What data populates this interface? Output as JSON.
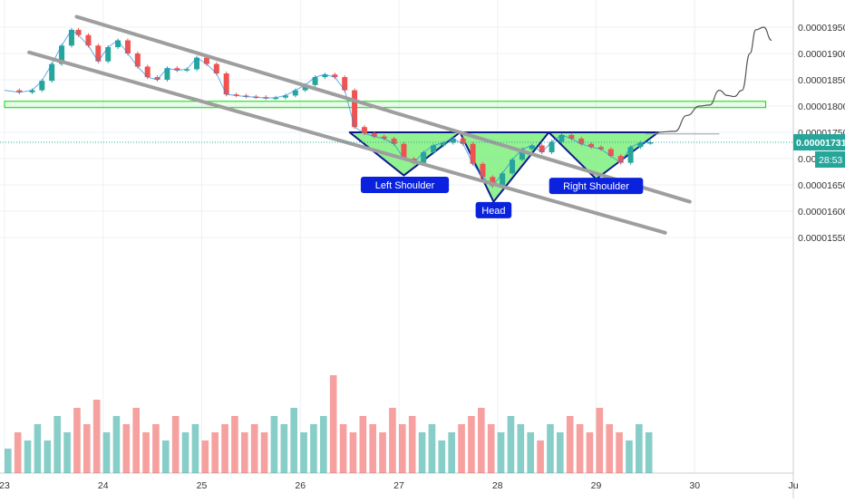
{
  "chart_data": {
    "type": "candlestick",
    "title": "",
    "x_labels": [
      "23",
      "24",
      "25",
      "26",
      "27",
      "28",
      "29",
      "30",
      "Ju"
    ],
    "y_ticks": [
      1.95e-05,
      1.9e-05,
      1.85e-05,
      1.8e-05,
      1.75e-05,
      1.7e-05,
      1.65e-05,
      1.6e-05,
      1.55e-05
    ],
    "y_tick_labels": [
      "0.00001950",
      "0.00001900",
      "0.00001850",
      "0.00001800",
      "0.00001750",
      "0.00001700",
      "0.00001650",
      "0.00001600",
      "0.00001550"
    ],
    "ylim": [
      1.534e-05,
      2.005e-05
    ],
    "xlim": [
      23.0,
      31.0
    ],
    "price_label": {
      "value": 1.731e-05,
      "text": "0.00001731"
    },
    "countdown_label": "28:53",
    "grid": true,
    "colors": {
      "up": "#26a69a",
      "down": "#ef5350",
      "pattern_fill": "#7ff07f",
      "pattern_stroke": "#0d1a8c",
      "channel": "#9e9e9e",
      "zone": "#00dd00",
      "annotation_bg": "#0a22dd"
    },
    "price_path": [
      [
        23.0,
        1.83e-05
      ],
      [
        23.15,
        1.826e-05
      ],
      [
        23.28,
        1.83e-05
      ],
      [
        23.38,
        1.848e-05
      ],
      [
        23.48,
        1.88e-05
      ],
      [
        23.58,
        1.915e-05
      ],
      [
        23.68,
        1.945e-05
      ],
      [
        23.75,
        1.935e-05
      ],
      [
        23.85,
        1.915e-05
      ],
      [
        23.95,
        1.885e-05
      ],
      [
        24.05,
        1.912e-05
      ],
      [
        24.15,
        1.925e-05
      ],
      [
        24.25,
        1.9e-05
      ],
      [
        24.35,
        1.875e-05
      ],
      [
        24.45,
        1.855e-05
      ],
      [
        24.55,
        1.85e-05
      ],
      [
        24.65,
        1.872e-05
      ],
      [
        24.75,
        1.868e-05
      ],
      [
        24.85,
        1.87e-05
      ],
      [
        24.95,
        1.892e-05
      ],
      [
        25.05,
        1.88e-05
      ],
      [
        25.15,
        1.862e-05
      ],
      [
        25.25,
        1.822e-05
      ],
      [
        25.35,
        1.82e-05
      ],
      [
        25.45,
        1.818e-05
      ],
      [
        25.55,
        1.817e-05
      ],
      [
        25.65,
        1.815e-05
      ],
      [
        25.75,
        1.816e-05
      ],
      [
        25.85,
        1.82e-05
      ],
      [
        25.95,
        1.83e-05
      ],
      [
        26.05,
        1.84e-05
      ],
      [
        26.15,
        1.855e-05
      ],
      [
        26.25,
        1.86e-05
      ],
      [
        26.35,
        1.855e-05
      ],
      [
        26.45,
        1.83e-05
      ],
      [
        26.55,
        1.76e-05
      ],
      [
        26.65,
        1.748e-05
      ],
      [
        26.75,
        1.742e-05
      ],
      [
        26.85,
        1.738e-05
      ],
      [
        26.95,
        1.728e-05
      ],
      [
        27.05,
        1.7e-05
      ],
      [
        27.15,
        1.692e-05
      ],
      [
        27.25,
        1.712e-05
      ],
      [
        27.35,
        1.725e-05
      ],
      [
        27.45,
        1.73e-05
      ],
      [
        27.55,
        1.738e-05
      ],
      [
        27.65,
        1.728e-05
      ],
      [
        27.75,
        1.69e-05
      ],
      [
        27.85,
        1.665e-05
      ],
      [
        27.95,
        1.648e-05
      ],
      [
        28.05,
        1.672e-05
      ],
      [
        28.15,
        1.698e-05
      ],
      [
        28.25,
        1.718e-05
      ],
      [
        28.35,
        1.725e-05
      ],
      [
        28.45,
        1.712e-05
      ],
      [
        28.55,
        1.732e-05
      ],
      [
        28.65,
        1.745e-05
      ],
      [
        28.75,
        1.738e-05
      ],
      [
        28.85,
        1.728e-05
      ],
      [
        28.95,
        1.722e-05
      ],
      [
        29.05,
        1.718e-05
      ],
      [
        29.15,
        1.705e-05
      ],
      [
        29.25,
        1.692e-05
      ],
      [
        29.35,
        1.722e-05
      ],
      [
        29.45,
        1.73e-05
      ],
      [
        29.55,
        1.731e-05
      ]
    ],
    "volume": [
      3,
      5,
      4,
      6,
      4,
      7,
      5,
      8,
      6,
      9,
      5,
      7,
      6,
      8,
      5,
      6,
      4,
      7,
      5,
      6,
      4,
      5,
      6,
      7,
      5,
      6,
      5,
      7,
      6,
      8,
      5,
      6,
      7,
      12,
      6,
      5,
      7,
      6,
      5,
      8,
      6,
      7,
      5,
      6,
      4,
      5,
      6,
      7,
      8,
      6,
      5,
      7,
      6,
      5,
      4,
      6,
      5,
      7,
      6,
      5,
      8,
      6,
      5,
      4,
      6,
      5
    ],
    "projection": [
      [
        29.6,
        1.75e-05
      ],
      [
        29.8,
        1.752e-05
      ],
      [
        29.92,
        1.782e-05
      ],
      [
        30.05,
        1.8e-05
      ],
      [
        30.15,
        1.802e-05
      ],
      [
        30.25,
        1.83e-05
      ],
      [
        30.33,
        1.82e-05
      ],
      [
        30.4,
        1.818e-05
      ],
      [
        30.48,
        1.83e-05
      ],
      [
        30.56,
        1.9e-05
      ],
      [
        30.62,
        1.945e-05
      ],
      [
        30.7,
        1.95e-05
      ],
      [
        30.78,
        1.925e-05
      ]
    ],
    "channel_lines": [
      {
        "from": [
          23.73,
          1.97e-05
        ],
        "to": [
          29.95,
          1.618e-05
        ]
      },
      {
        "from": [
          23.25,
          1.902e-05
        ],
        "to": [
          29.7,
          1.559e-05
        ]
      }
    ],
    "horizontal_lines": [
      {
        "value": 1.747e-05,
        "from": 29.5,
        "to": 30.25
      }
    ],
    "resistance_zone": {
      "y_top": 1.809e-05,
      "y_bottom": 1.797e-05,
      "x_from": 23.0,
      "x_to": 30.72
    },
    "pattern": {
      "neckline": 1.75e-05,
      "left_shoulder": {
        "x": [
          26.5,
          27.05,
          27.62
        ],
        "low": 1.668e-05
      },
      "head": {
        "x": [
          27.62,
          27.96,
          28.52
        ],
        "low": 1.618e-05
      },
      "right_shoulder": {
        "x": [
          28.52,
          29.0,
          29.63
        ],
        "low": 1.661e-05
      }
    },
    "annotations": [
      {
        "text": "Left Shoulder",
        "x": 27.06,
        "y": 1.65e-05
      },
      {
        "text": "Head",
        "x": 27.96,
        "y": 1.602e-05
      },
      {
        "text": "Right Shoulder",
        "x": 29.0,
        "y": 1.648e-05
      }
    ]
  }
}
